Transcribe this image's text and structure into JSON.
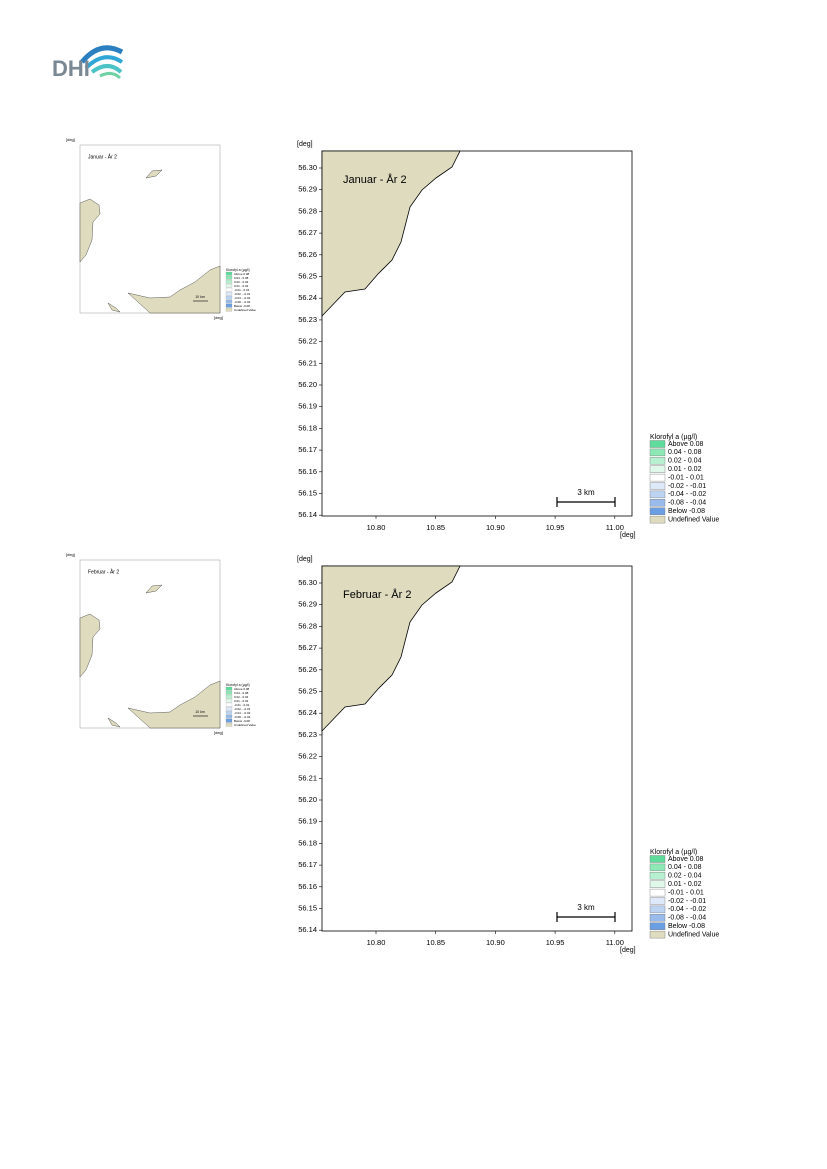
{
  "header": {
    "logo": "DHI"
  },
  "legend": {
    "title": "Klorofyl a (µg/l)",
    "items": [
      {
        "label": "Above  0.08",
        "color": "#5fdc9c"
      },
      {
        "label": " 0.04 -  0.08",
        "color": "#8de8b6"
      },
      {
        "label": " 0.02 -  0.04",
        "color": "#b7f0d0"
      },
      {
        "label": " 0.01 -  0.02",
        "color": "#e0f8ea"
      },
      {
        "label": "-0.01 -  0.01",
        "color": "#ffffff"
      },
      {
        "label": "-0.02 - -0.01",
        "color": "#dde8f8"
      },
      {
        "label": "-0.04 - -0.02",
        "color": "#bcd3f2"
      },
      {
        "label": "-0.08 - -0.04",
        "color": "#98bbec"
      },
      {
        "label": "Below -0.08",
        "color": "#6a9fe4"
      },
      {
        "label": "Undefined Value",
        "color": "#dedbbf"
      }
    ]
  },
  "panels": [
    {
      "title": "Januar - År 2",
      "y_unit": "[deg]",
      "x_unit": "[deg]",
      "scale_bar": "3 km",
      "small_scale_bar": "10 km",
      "yticks": [
        "56.30",
        "56.29",
        "56.28",
        "56.27",
        "56.26",
        "56.25",
        "56.24",
        "56.23",
        "56.22",
        "56.21",
        "56.20",
        "56.19",
        "56.18",
        "56.17",
        "56.16",
        "56.15",
        "56.14"
      ],
      "xticks": [
        "10.80",
        "10.85",
        "10.90",
        "10.95",
        "11.00"
      ]
    },
    {
      "title": "Februar - År 2",
      "y_unit": "[deg]",
      "x_unit": "[deg]",
      "scale_bar": "3 km",
      "small_scale_bar": "10 km",
      "yticks": [
        "56.30",
        "56.29",
        "56.28",
        "56.27",
        "56.26",
        "56.25",
        "56.24",
        "56.23",
        "56.22",
        "56.21",
        "56.20",
        "56.19",
        "56.18",
        "56.17",
        "56.16",
        "56.15",
        "56.14"
      ],
      "xticks": [
        "10.80",
        "10.85",
        "10.90",
        "10.95",
        "11.00"
      ]
    }
  ]
}
